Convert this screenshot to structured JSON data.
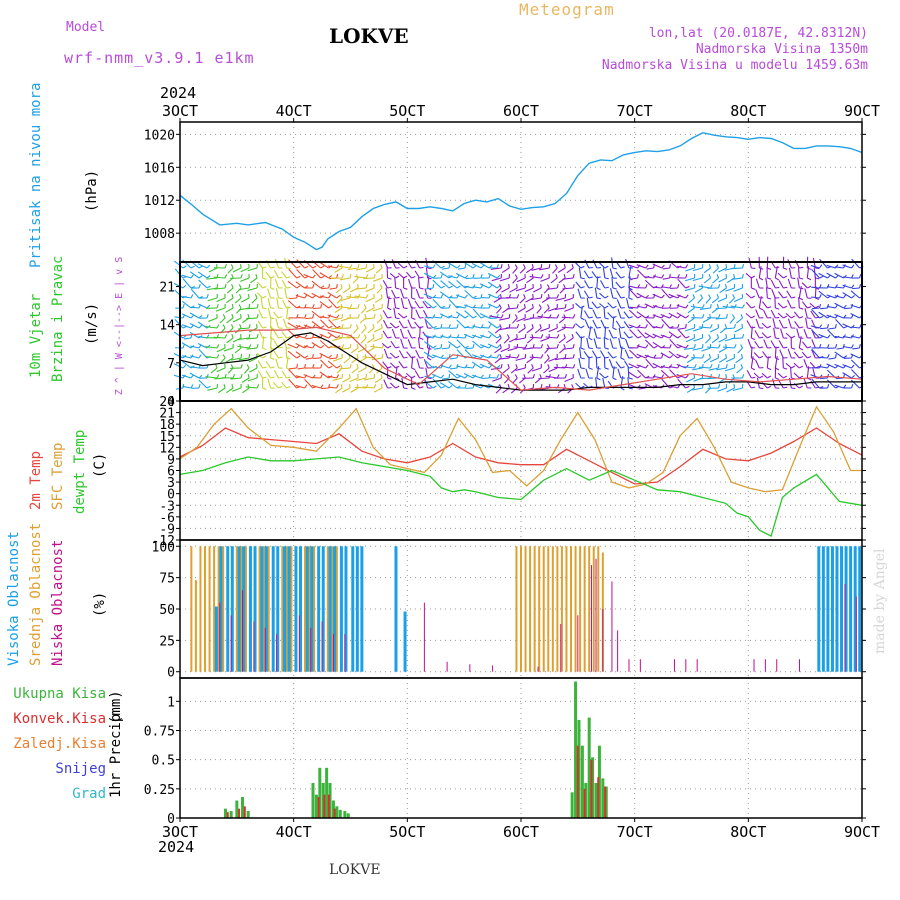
{
  "header": {
    "model_label": "Model",
    "model_name": "wrf-nmm_v3.9.1  e1km",
    "station": "LOKVE",
    "meteogram": "Meteogram",
    "lonlat": "lon,lat (20.0187E, 42.8312N)",
    "elevation": "Nadmorska Visina 1350m",
    "model_elevation": "Nadmorska Visina u modelu 1459.63m",
    "watermark": "made by Angel",
    "footer": "LOKVE",
    "year_top": "2024",
    "year_bottom": "2024"
  },
  "colors": {
    "pressure": "#1ea0e6",
    "temp2m": "#e8453c",
    "sfc": "#dba035",
    "dew": "#2bc82b",
    "high_cloud": "#1aa0e6",
    "mid_cloud": "#e0a030",
    "low_cloud": "#c0108a",
    "total_precip": "#3cb43c",
    "conv_precip": "#d83030",
    "freezing_precip": "#e88030",
    "snow": "#4040d8",
    "hail": "#30b8c8",
    "wind_dir_label": "#b84cd8",
    "frame": "#000000",
    "grid": "#9a9a9a"
  },
  "chart_data": [
    {
      "id": "pressure",
      "type": "line",
      "panel_title": "Pritisak na nivou mora",
      "ylabel": "(hPa)",
      "ylim": [
        1004.5,
        1021.5
      ],
      "yticks": [
        1008,
        1012,
        1016,
        1020
      ],
      "grid": true,
      "series": [
        {
          "name": "Pritisak na nivou mora",
          "color_key": "pressure",
          "x": [
            3.0,
            3.1,
            3.2,
            3.35,
            3.5,
            3.6,
            3.75,
            3.9,
            4.0,
            4.1,
            4.2,
            4.25,
            4.3,
            4.4,
            4.5,
            4.6,
            4.7,
            4.8,
            4.9,
            5.0,
            5.1,
            5.2,
            5.3,
            5.4,
            5.5,
            5.6,
            5.7,
            5.8,
            5.9,
            6.0,
            6.1,
            6.2,
            6.3,
            6.4,
            6.5,
            6.6,
            6.7,
            6.8,
            6.9,
            7.0,
            7.1,
            7.2,
            7.3,
            7.4,
            7.5,
            7.6,
            7.7,
            7.8,
            7.9,
            8.0,
            8.1,
            8.2,
            8.3,
            8.4,
            8.5,
            8.6,
            8.7,
            8.8,
            8.9,
            9.0
          ],
          "y": [
            1012.6,
            1011.5,
            1010.3,
            1009.0,
            1009.2,
            1009.0,
            1009.3,
            1008.5,
            1007.5,
            1006.9,
            1006.0,
            1006.3,
            1007.3,
            1008.2,
            1008.7,
            1010.0,
            1011.0,
            1011.5,
            1011.8,
            1011.0,
            1011.0,
            1011.2,
            1011.0,
            1010.7,
            1011.6,
            1012.0,
            1011.8,
            1012.2,
            1011.3,
            1010.9,
            1011.1,
            1011.2,
            1011.6,
            1012.8,
            1015.0,
            1016.5,
            1016.9,
            1016.8,
            1017.5,
            1017.8,
            1018.0,
            1017.9,
            1018.1,
            1018.6,
            1019.5,
            1020.2,
            1019.9,
            1019.7,
            1019.6,
            1019.4,
            1019.6,
            1019.5,
            1019.0,
            1018.3,
            1018.3,
            1018.6,
            1018.6,
            1018.5,
            1018.3,
            1017.8
          ]
        }
      ],
      "x_axis_top": {
        "ticks": [
          3,
          4,
          5,
          6,
          7,
          8,
          9
        ],
        "labels": [
          "3OCT",
          "4OCT",
          "5OCT",
          "6OCT",
          "7OCT",
          "8OCT",
          "9OCT"
        ]
      }
    },
    {
      "id": "wind",
      "type": "line",
      "panel_title": "10m Vjetar",
      "panel_title2": "Brzina i Pravac",
      "ylabel": "(m/s)",
      "ylim": [
        0,
        25.5
      ],
      "yticks": [
        0,
        7,
        14,
        21
      ],
      "grid": false,
      "direction_legend": [
        "Z",
        "^",
        "|",
        "W  <--|-->  E",
        "|",
        "v",
        "S"
      ],
      "series": [
        {
          "name": "brzina",
          "color": "#000000",
          "x": [
            3.0,
            3.2,
            3.4,
            3.6,
            3.8,
            4.0,
            4.15,
            4.3,
            4.45,
            4.6,
            4.8,
            5.0,
            5.2,
            5.4,
            5.6,
            5.8,
            6.0,
            6.2,
            6.4,
            6.6,
            6.8,
            7.0,
            7.2,
            7.4,
            7.6,
            7.8,
            8.0,
            8.2,
            8.4,
            8.6,
            8.8,
            9.0
          ],
          "y": [
            7.5,
            6.5,
            7.0,
            7.5,
            9.0,
            12.0,
            12.5,
            11.0,
            9.0,
            7.0,
            5.0,
            3.0,
            3.5,
            4.0,
            3.0,
            2.5,
            2.0,
            2.0,
            2.0,
            2.5,
            2.5,
            2.5,
            2.5,
            3.0,
            3.0,
            3.5,
            3.5,
            3.0,
            3.0,
            3.5,
            3.5,
            3.5
          ]
        },
        {
          "name": "udari",
          "color": "#e05050",
          "x": [
            3.0,
            3.3,
            3.6,
            3.9,
            4.2,
            4.5,
            4.8,
            5.1,
            5.4,
            5.7,
            6.0,
            6.3,
            6.6,
            6.9,
            7.2,
            7.5,
            7.8,
            8.1,
            8.4,
            8.7,
            9.0
          ],
          "y": [
            12.0,
            12.5,
            13.0,
            13.0,
            13.5,
            12.0,
            6.0,
            3.0,
            8.5,
            7.5,
            2.0,
            2.5,
            2.0,
            3.0,
            4.0,
            5.0,
            4.0,
            3.5,
            4.0,
            4.5,
            4.0
          ]
        }
      ],
      "barb_groups": [
        {
          "x0": 3.0,
          "x1": 3.3,
          "color": "#1ea0e6"
        },
        {
          "x0": 3.3,
          "x1": 3.7,
          "color": "#39c42a"
        },
        {
          "x0": 3.7,
          "x1": 4.0,
          "color": "#c4d830"
        },
        {
          "x0": 4.0,
          "x1": 4.4,
          "color": "#e84a2a"
        },
        {
          "x0": 4.4,
          "x1": 4.8,
          "color": "#d8c02a"
        },
        {
          "x0": 4.8,
          "x1": 5.2,
          "color": "#8a1ac8"
        },
        {
          "x0": 5.2,
          "x1": 5.8,
          "color": "#1ea0e6"
        },
        {
          "x0": 5.8,
          "x1": 6.5,
          "color": "#8a1ac8"
        },
        {
          "x0": 6.5,
          "x1": 7.0,
          "color": "#3040e0"
        },
        {
          "x0": 7.0,
          "x1": 7.5,
          "color": "#8a1ac8"
        },
        {
          "x0": 7.5,
          "x1": 8.0,
          "color": "#1ea0e6"
        },
        {
          "x0": 8.0,
          "x1": 8.6,
          "color": "#8a1ac8"
        },
        {
          "x0": 8.6,
          "x1": 9.0,
          "color": "#3040e0"
        }
      ]
    },
    {
      "id": "temperature",
      "type": "line",
      "panel_title": "2m Temp",
      "panel_title2": "SFC Temp",
      "panel_title3": "dewpt Temp",
      "ylabel": "(C)",
      "ylim": [
        -12,
        24
      ],
      "yticks": [
        -12,
        -9,
        -6,
        -3,
        0,
        3,
        6,
        9,
        12,
        15,
        18,
        21,
        24
      ],
      "grid": true,
      "series": [
        {
          "name": "2m Temp",
          "color_key": "temp2m",
          "x": [
            3.0,
            3.2,
            3.4,
            3.6,
            3.8,
            4.0,
            4.2,
            4.4,
            4.6,
            4.8,
            5.0,
            5.2,
            5.4,
            5.6,
            5.8,
            6.0,
            6.2,
            6.4,
            6.6,
            6.8,
            7.0,
            7.2,
            7.4,
            7.6,
            7.8,
            8.0,
            8.2,
            8.4,
            8.6,
            8.8,
            9.0
          ],
          "y": [
            9.5,
            12.5,
            17.0,
            14.5,
            14.0,
            13.5,
            13.0,
            15.5,
            11.0,
            9.0,
            8.0,
            9.5,
            13.0,
            9.5,
            8.0,
            7.5,
            7.5,
            11.5,
            8.5,
            5.5,
            2.5,
            3.0,
            7.0,
            11.5,
            9.0,
            8.5,
            10.5,
            13.5,
            17.0,
            13.0,
            10.0
          ]
        },
        {
          "name": "SFC Temp",
          "color_key": "sfc",
          "x": [
            3.0,
            3.15,
            3.3,
            3.45,
            3.6,
            3.8,
            4.0,
            4.2,
            4.4,
            4.55,
            4.7,
            4.85,
            5.0,
            5.15,
            5.3,
            5.45,
            5.6,
            5.75,
            5.9,
            6.05,
            6.2,
            6.35,
            6.5,
            6.65,
            6.8,
            6.95,
            7.1,
            7.25,
            7.4,
            7.55,
            7.7,
            7.85,
            8.0,
            8.15,
            8.3,
            8.45,
            8.6,
            8.75,
            8.9,
            9.0
          ],
          "y": [
            9.0,
            12.0,
            18.0,
            22.0,
            17.0,
            12.5,
            12.0,
            11.0,
            17.0,
            22.0,
            12.0,
            7.5,
            6.5,
            5.5,
            10.0,
            19.5,
            14.0,
            5.5,
            6.0,
            2.0,
            6.0,
            14.0,
            21.0,
            14.0,
            3.0,
            1.5,
            2.5,
            5.5,
            15.0,
            19.5,
            12.0,
            3.0,
            1.5,
            0.5,
            1.0,
            12.0,
            22.5,
            16.0,
            6.0,
            6.0
          ]
        },
        {
          "name": "dewpt Temp",
          "color_key": "dew",
          "x": [
            3.0,
            3.2,
            3.4,
            3.6,
            3.8,
            4.0,
            4.2,
            4.4,
            4.6,
            4.8,
            5.0,
            5.2,
            5.3,
            5.4,
            5.5,
            5.6,
            5.8,
            6.0,
            6.2,
            6.4,
            6.6,
            6.8,
            7.0,
            7.2,
            7.4,
            7.6,
            7.8,
            7.9,
            8.0,
            8.1,
            8.2,
            8.3,
            8.4,
            8.6,
            8.8,
            9.0
          ],
          "y": [
            5.0,
            6.0,
            8.0,
            9.5,
            8.5,
            8.5,
            9.0,
            9.5,
            8.0,
            7.0,
            6.0,
            4.5,
            1.5,
            0.5,
            1.0,
            0.5,
            -1.0,
            -1.5,
            3.5,
            6.5,
            3.5,
            6.0,
            3.5,
            1.0,
            0.5,
            -1.0,
            -2.5,
            -5.0,
            -6.0,
            -9.5,
            -11.0,
            -1.0,
            1.5,
            5.0,
            -2.0,
            -3.0
          ]
        }
      ]
    },
    {
      "id": "clouds",
      "type": "bar",
      "panel_title": "Visoka Oblacnost",
      "panel_title2": "Srednja Oblacnost",
      "panel_title3": "Niska Oblacnost",
      "ylabel": "(%)",
      "ylim": [
        -5,
        105
      ],
      "yticks": [
        0,
        25,
        50,
        75,
        100
      ],
      "grid": true,
      "series": [
        {
          "name": "Srednja Oblacnost",
          "color_key": "mid_cloud",
          "bar_width": 2,
          "x": [
            3.1,
            3.14,
            3.18,
            3.22,
            3.26,
            3.3,
            3.34,
            3.38,
            3.42,
            3.46,
            3.5,
            3.54,
            3.58,
            3.62,
            3.66,
            3.7,
            3.74,
            3.78,
            3.82,
            3.86,
            3.9,
            3.94,
            3.98,
            4.02,
            4.06,
            4.1,
            4.14,
            4.18,
            4.22,
            4.26,
            4.3,
            4.34,
            4.38,
            4.42,
            5.96,
            6.0,
            6.04,
            6.08,
            6.12,
            6.16,
            6.2,
            6.24,
            6.28,
            6.32,
            6.36,
            6.4,
            6.44,
            6.48,
            6.52,
            6.56,
            6.6,
            6.64,
            6.68,
            6.72
          ],
          "y": [
            100,
            73,
            100,
            100,
            100,
            100,
            100,
            100,
            100,
            100,
            100,
            100,
            100,
            100,
            100,
            100,
            100,
            100,
            100,
            100,
            100,
            100,
            100,
            100,
            100,
            100,
            100,
            100,
            100,
            100,
            100,
            100,
            100,
            100,
            100,
            100,
            100,
            100,
            100,
            100,
            100,
            100,
            100,
            100,
            100,
            100,
            100,
            100,
            100,
            100,
            100,
            100,
            100,
            95
          ]
        },
        {
          "name": "Visoka Oblacnost",
          "color_key": "high_cloud",
          "bar_width": 3,
          "x": [
            3.32,
            3.36,
            3.42,
            3.46,
            3.52,
            3.56,
            3.62,
            3.66,
            3.72,
            3.76,
            3.82,
            3.86,
            3.92,
            3.96,
            4.02,
            4.06,
            4.12,
            4.16,
            4.22,
            4.26,
            4.32,
            4.36,
            4.42,
            4.46,
            4.52,
            4.56,
            4.6,
            4.9,
            4.98,
            8.62,
            8.66,
            8.7,
            8.74,
            8.78,
            8.82,
            8.86,
            8.9,
            8.94,
            8.98
          ],
          "y": [
            52,
            100,
            100,
            100,
            100,
            100,
            100,
            100,
            100,
            100,
            100,
            100,
            100,
            100,
            100,
            100,
            100,
            100,
            100,
            100,
            100,
            100,
            100,
            100,
            100,
            100,
            100,
            100,
            48,
            100,
            100,
            100,
            100,
            100,
            100,
            100,
            100,
            100,
            100
          ]
        },
        {
          "name": "Niska Oblacnost",
          "color_key": "low_cloud",
          "bar_width": 1,
          "x": [
            3.35,
            3.45,
            3.55,
            3.65,
            3.75,
            3.85,
            4.05,
            4.15,
            4.25,
            4.35,
            4.45,
            5.15,
            5.35,
            5.55,
            5.75,
            6.15,
            6.35,
            6.5,
            6.62,
            6.66,
            6.72,
            6.8,
            6.85,
            6.95,
            7.05,
            7.35,
            7.45,
            7.55,
            8.05,
            8.15,
            8.25,
            8.45,
            8.85,
            8.95
          ],
          "y": [
            55,
            45,
            65,
            40,
            35,
            30,
            45,
            35,
            40,
            30,
            30,
            55,
            8,
            6,
            5,
            4,
            38,
            45,
            85,
            90,
            50,
            72,
            33,
            10,
            10,
            10,
            10,
            10,
            10,
            10,
            10,
            10,
            70,
            60
          ]
        }
      ]
    },
    {
      "id": "precip",
      "type": "bar",
      "panel_title": "1hr Precip",
      "ylabel": "(mm)",
      "ylim": [
        0,
        1.2
      ],
      "yticks": [
        0,
        0.25,
        0.5,
        0.75,
        1
      ],
      "grid": true,
      "legend": [
        "Ukupna Kisa",
        "Konvek.Kisa",
        "Zaledj.Kisa",
        "Snijeg",
        "Grad"
      ],
      "series": [
        {
          "name": "Ukupna Kisa",
          "color_key": "total_precip",
          "x": [
            3.4,
            3.45,
            3.5,
            3.55,
            3.6,
            4.17,
            4.2,
            4.23,
            4.26,
            4.29,
            4.32,
            4.35,
            4.38,
            4.41,
            4.45,
            4.48,
            6.45,
            6.48,
            6.51,
            6.54,
            6.57,
            6.6,
            6.63,
            6.66,
            6.69,
            6.72,
            6.75
          ],
          "y": [
            0.08,
            0.06,
            0.15,
            0.18,
            0.06,
            0.3,
            0.2,
            0.43,
            0.3,
            0.43,
            0.3,
            0.15,
            0.1,
            0.07,
            0.06,
            0.04,
            0.22,
            1.17,
            0.84,
            0.62,
            0.3,
            0.86,
            0.52,
            0.3,
            0.62,
            0.34,
            0.27
          ]
        },
        {
          "name": "Konvek.Kisa",
          "color_key": "conv_precip",
          "x": [
            3.42,
            3.52,
            3.57,
            4.22,
            4.27,
            4.31,
            4.36,
            6.5,
            6.56,
            6.62,
            6.68,
            6.74
          ],
          "y": [
            0.05,
            0.08,
            0.1,
            0.18,
            0.2,
            0.2,
            0.08,
            0.62,
            0.25,
            0.5,
            0.35,
            0.27
          ]
        }
      ],
      "x_axis_bottom": {
        "ticks": [
          3,
          4,
          5,
          6,
          7,
          8,
          9
        ],
        "labels": [
          "3OCT",
          "4OCT",
          "5OCT",
          "6OCT",
          "7OCT",
          "8OCT",
          "9OCT"
        ]
      }
    }
  ]
}
